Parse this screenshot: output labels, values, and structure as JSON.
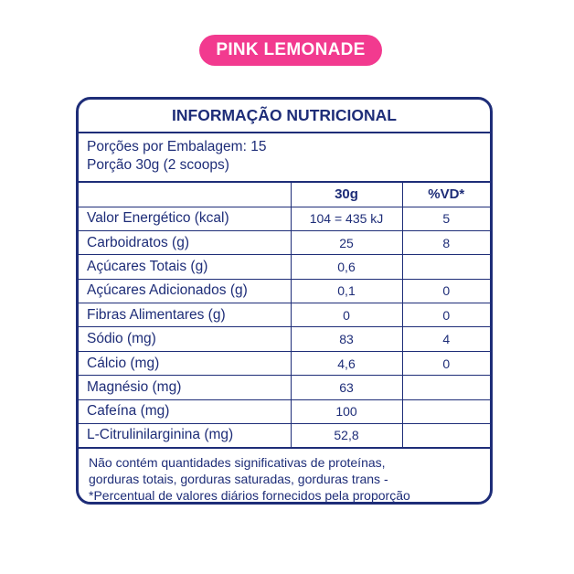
{
  "badge": "PINK LEMONADE",
  "title": "INFORMAÇÃO NUTRICIONAL",
  "servings": {
    "line1": "Porções por Embalagem: 15",
    "line2": "Porção 30g (2 scoops)"
  },
  "table": {
    "headers": [
      "",
      "30g",
      "%VD*"
    ],
    "rows": [
      {
        "label": "Valor Energético (kcal)",
        "amount": "104 = 435 kJ",
        "vd": "5"
      },
      {
        "label": "Carboidratos (g)",
        "amount": "25",
        "vd": "8"
      },
      {
        "label": "Açúcares Totais (g)",
        "amount": "0,6",
        "vd": ""
      },
      {
        "label": "Açúcares Adicionados (g)",
        "amount": "0,1",
        "vd": "0"
      },
      {
        "label": "Fibras Alimentares (g)",
        "amount": "0",
        "vd": "0"
      },
      {
        "label": "Sódio (mg)",
        "amount": "83",
        "vd": "4"
      },
      {
        "label": "Cálcio (mg)",
        "amount": "4,6",
        "vd": "0"
      },
      {
        "label": "Magnésio (mg)",
        "amount": "63",
        "vd": ""
      },
      {
        "label": "Cafeína (mg)",
        "amount": "100",
        "vd": ""
      },
      {
        "label": "L-Citrulinilarginina (mg)",
        "amount": "52,8",
        "vd": ""
      }
    ]
  },
  "footer": {
    "line1": "Não contém quantidades significativas de proteínas,",
    "line2": "gorduras totais, gorduras saturadas, gorduras trans -",
    "line3": "*Percentual de valores diários fornecidos pela proporção"
  }
}
